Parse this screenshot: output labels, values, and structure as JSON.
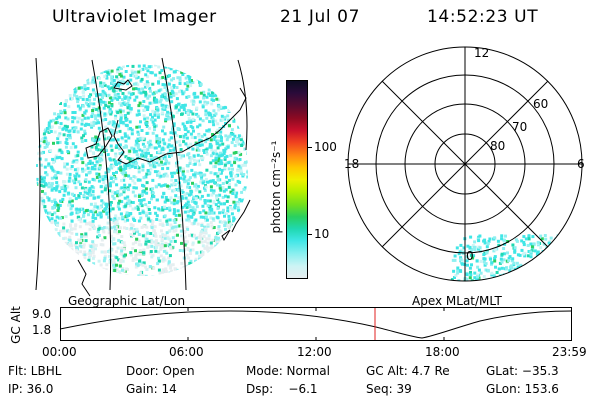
{
  "header": {
    "instrument": "Ultraviolet Imager",
    "date": "21 Jul 07",
    "time": "14:52:23 UT"
  },
  "panels": {
    "geographic_label": "Geographic Lat/Lon",
    "apex_label": "Apex MLat/MLT"
  },
  "colorbar": {
    "unit_label": "photon cm⁻²s⁻¹",
    "ticks": [
      "100",
      "10"
    ],
    "colors": [
      "#0c0c22",
      "#2a0b3a",
      "#5a0b2e",
      "#8e0a22",
      "#c8102a",
      "#ef4020",
      "#ff8a10",
      "#ffc800",
      "#f0f000",
      "#b8f000",
      "#70e020",
      "#2ad060",
      "#20d8b0",
      "#40e6e6",
      "#8ef0f0",
      "#cdf4f4",
      "#e6eef0"
    ]
  },
  "polar_plot": {
    "mlt_labels": {
      "top": "12",
      "left": "18",
      "right": "6",
      "bottom": "0"
    },
    "lat_labels": [
      "60",
      "70",
      "80"
    ]
  },
  "orbit_plot": {
    "y_axis_label": "GC Alt",
    "y_ticks": [
      "9.0",
      "1.8"
    ],
    "x_ticks": [
      "00:00",
      "06:00",
      "12:00",
      "18:00",
      "23:59"
    ],
    "current_time_color": "#e02020"
  },
  "info": {
    "row1": {
      "filter": "Flt: LBHL",
      "door": "Door: Open",
      "mode": "Mode: Normal",
      "gc_alt": "GC Alt: 4.7 Re",
      "glat": "GLat: −35.3"
    },
    "row2": {
      "ip": "IP: 36.0",
      "gain": "Gain: 14",
      "dsp": "Dsp:    −6.1",
      "seq": "Seq: 39",
      "glon": "GLon: 153.6"
    }
  }
}
